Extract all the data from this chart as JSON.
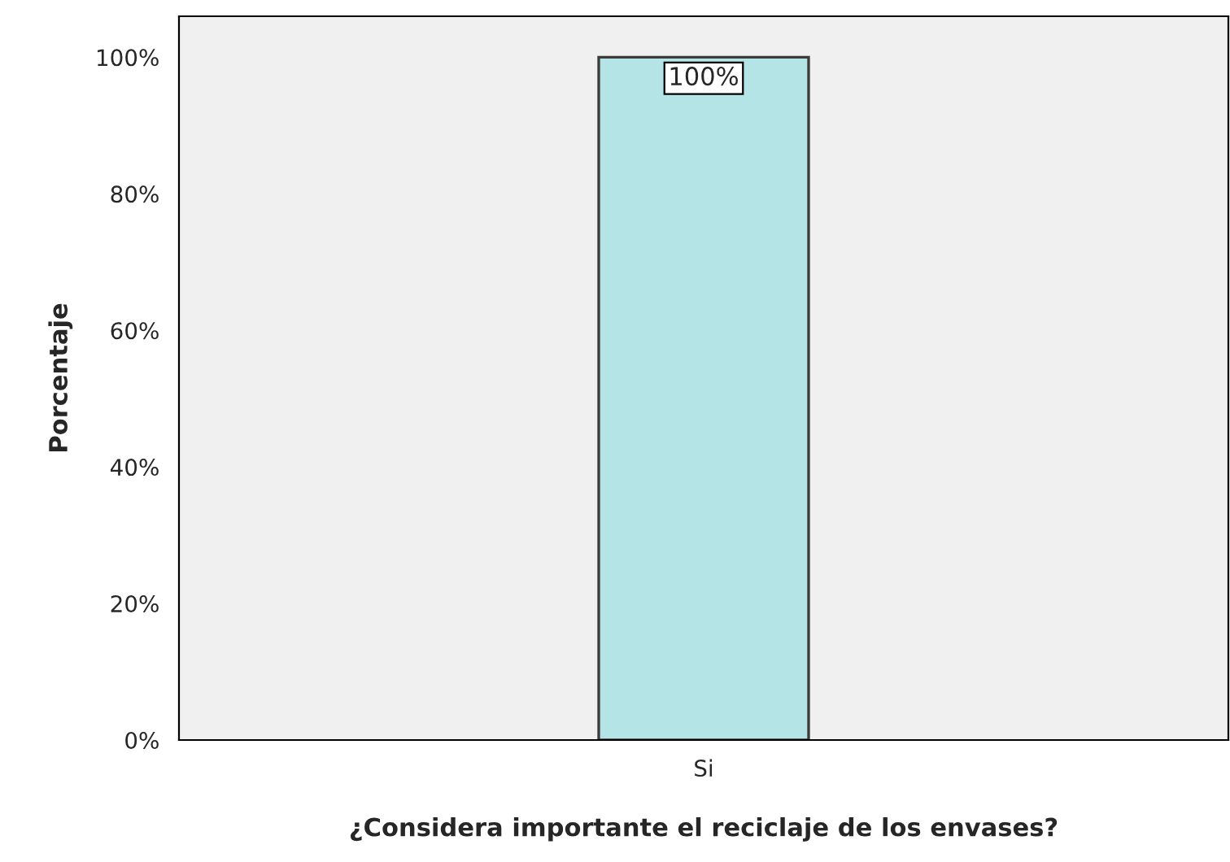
{
  "chart_data": {
    "type": "bar",
    "xlabel": "¿Considera importante el reciclaje de los envases?",
    "ylabel": "Porcentaje",
    "categories": [
      "Si"
    ],
    "values": [
      100
    ],
    "color": "#b4e4e6",
    "value_labels": [
      "100%"
    ],
    "ylim": [
      0,
      106
    ],
    "yticks": [
      {
        "value": 0,
        "label": "0%"
      },
      {
        "value": 20,
        "label": "20%"
      },
      {
        "value": 40,
        "label": "40%"
      },
      {
        "value": 60,
        "label": "60%"
      },
      {
        "value": 80,
        "label": "80%"
      },
      {
        "value": 100,
        "label": "100%"
      }
    ],
    "grid": false
  }
}
